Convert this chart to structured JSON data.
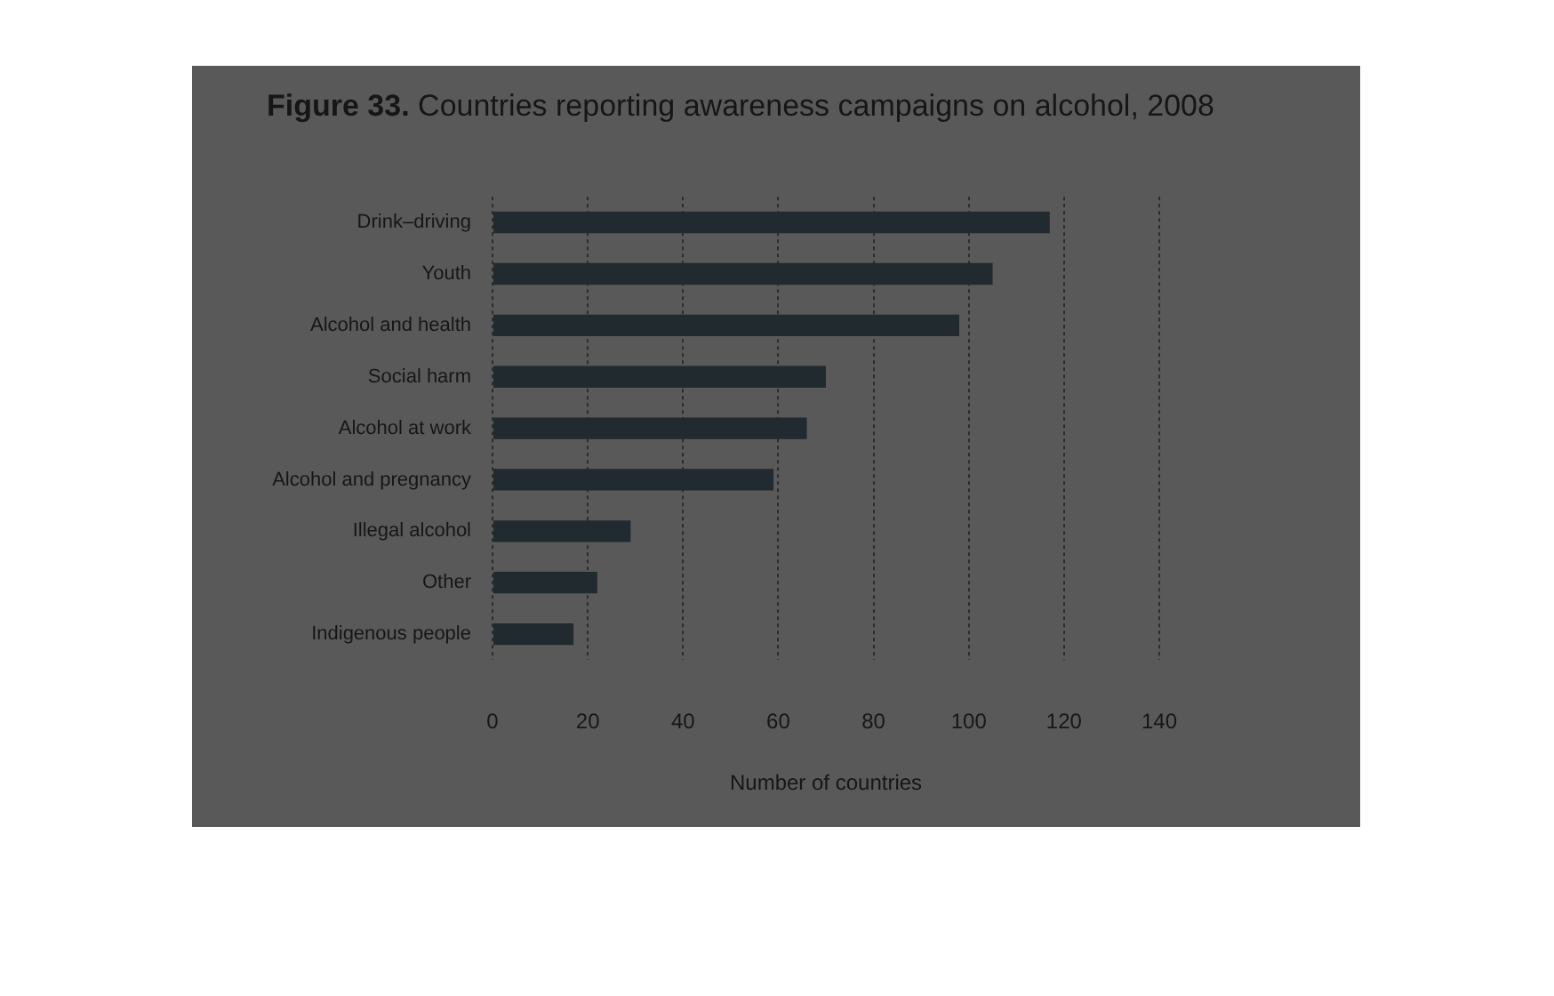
{
  "chart_data": {
    "type": "bar",
    "orientation": "horizontal",
    "title": "Figure 33. Countries reporting awareness campaigns on alcohol, 2008",
    "xlabel": "Number of countries",
    "categories": [
      "Drink–driving",
      "Youth",
      "Alcohol and health",
      "Social harm",
      "Alcohol at work",
      "Alcohol and pregnancy",
      "Illegal alcohol",
      "Other",
      "Indigenous people"
    ],
    "values": [
      117,
      105,
      98,
      70,
      66,
      59,
      29,
      22,
      17
    ],
    "color": "#212a2e",
    "xlim": [
      0,
      140
    ],
    "xticks": [
      0,
      20,
      40,
      60,
      80,
      100,
      120,
      140
    ],
    "grid": "x"
  }
}
